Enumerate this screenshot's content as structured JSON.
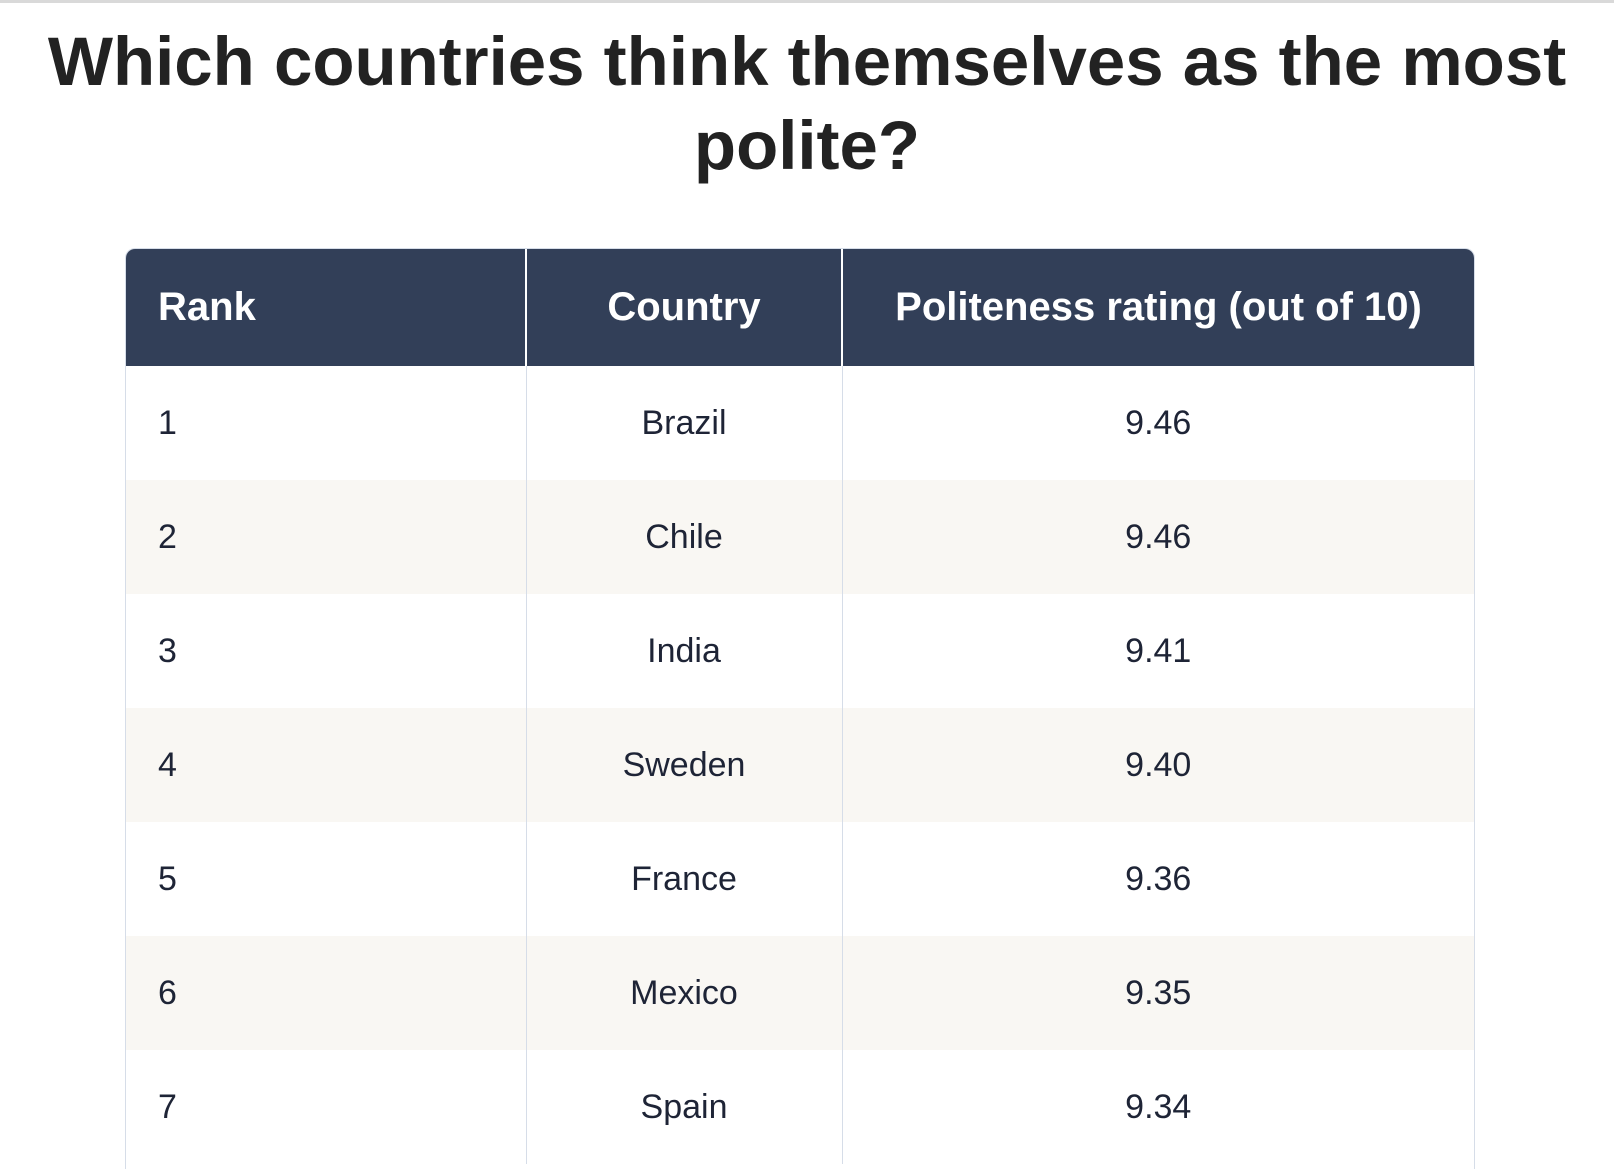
{
  "title": "Which countries think themselves as the most polite?",
  "table": {
    "headers": [
      "Rank",
      "Country",
      "Politeness rating (out of 10)"
    ],
    "rows": [
      {
        "rank": "1",
        "country": "Brazil",
        "rating": "9.46"
      },
      {
        "rank": "2",
        "country": "Chile",
        "rating": "9.46"
      },
      {
        "rank": "3",
        "country": "India",
        "rating": "9.41"
      },
      {
        "rank": "4",
        "country": "Sweden",
        "rating": "9.40"
      },
      {
        "rank": "5",
        "country": "France",
        "rating": "9.36"
      },
      {
        "rank": "6",
        "country": "Mexico",
        "rating": "9.35"
      },
      {
        "rank": "7",
        "country": "Spain",
        "rating": "9.34"
      }
    ]
  },
  "colors": {
    "header_bg": "#323f58",
    "header_text": "#ffffff",
    "stripe": "#f9f7f3",
    "border": "#d6dde8"
  }
}
